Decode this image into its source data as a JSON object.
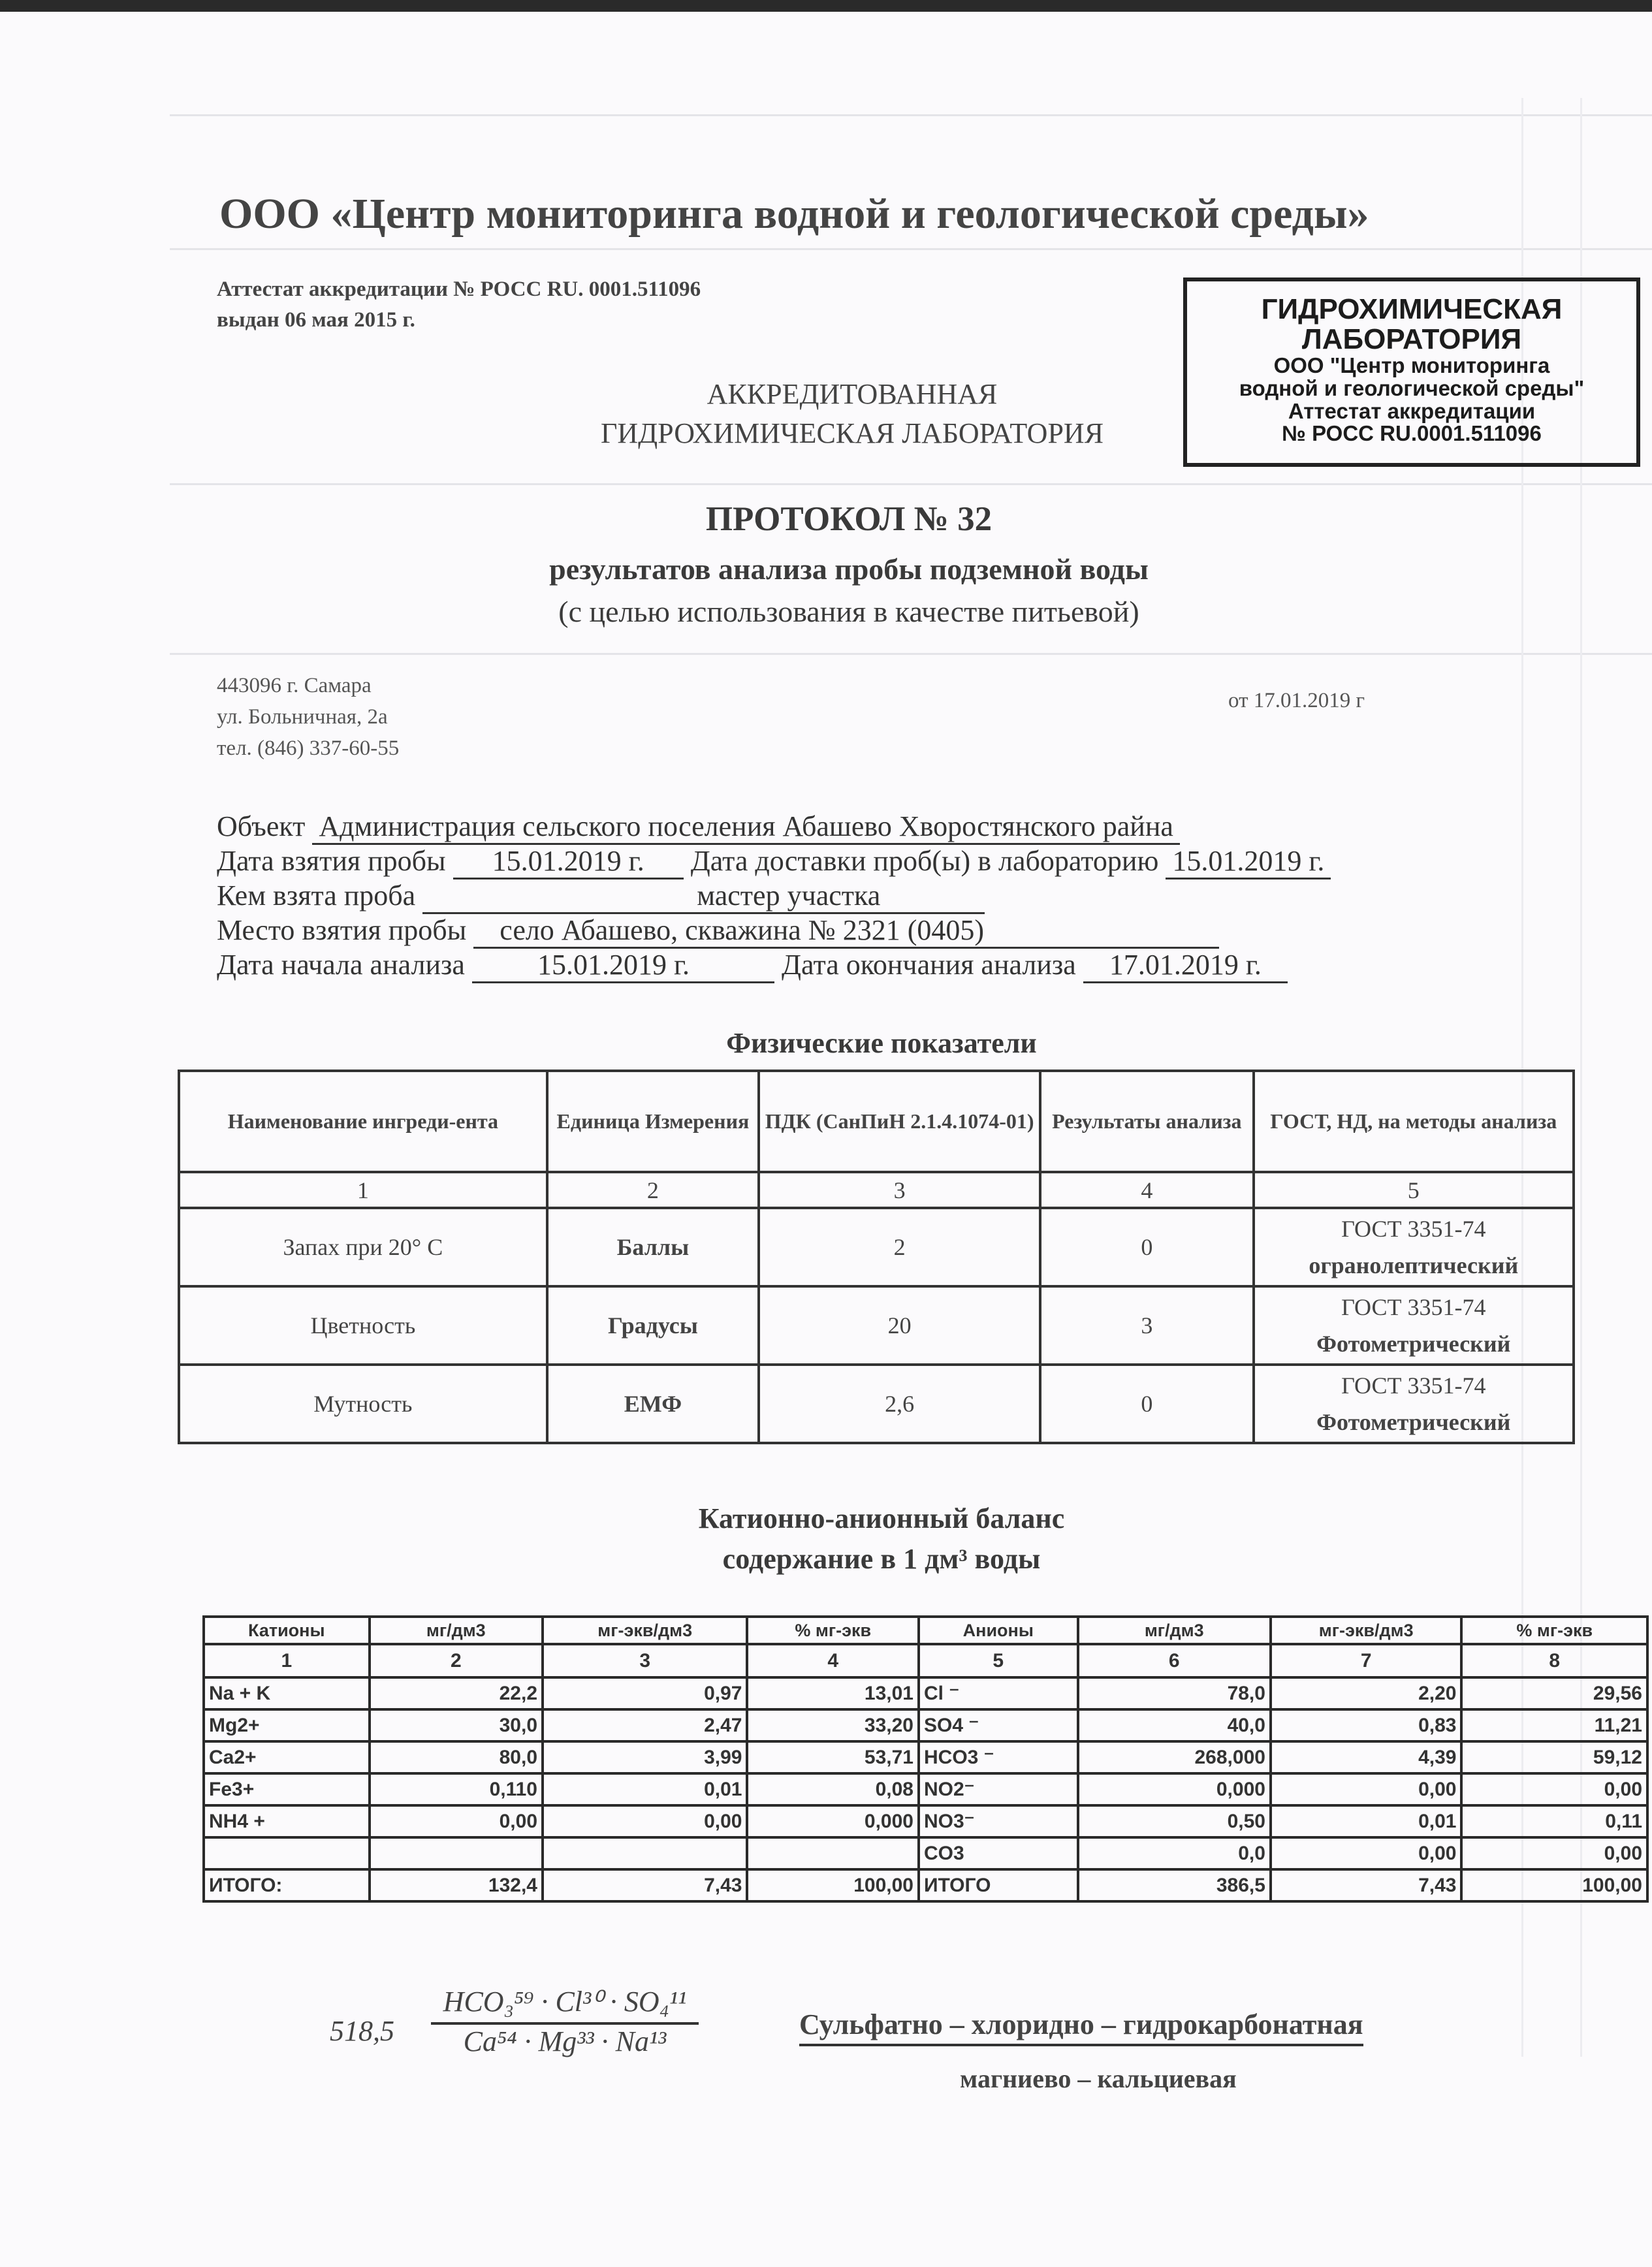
{
  "header": {
    "org_title": "ООО «Центр мониторинга водной и геологической среды»",
    "accreditation_line1": "Аттестат аккредитации № РОСС RU. 0001.511096",
    "accreditation_line2": "выдан 06 мая 2015 г.",
    "lab_line1": "АККРЕДИТОВАННАЯ",
    "lab_line2": "ГИДРОХИМИЧЕСКАЯ ЛАБОРАТОРИЯ"
  },
  "stamp": {
    "line1": "ГИДРОХИМИЧЕСКАЯ",
    "line2": "ЛАБОРАТОРИЯ",
    "line3": "ООО \"Центр мониторинга",
    "line4": "водной и геологической среды\"",
    "line5": "Аттестат аккредитации",
    "line6": "№ РОСС RU.0001.511096"
  },
  "protocol": {
    "title": "ПРОТОКОЛ  № 32",
    "subtitle1": "результатов анализа пробы подземной воды",
    "subtitle2": "(с целью использования в качестве питьевой)",
    "address1": "443096 г. Самара",
    "address2": "ул. Больничная, 2а",
    "phone": "тел. (846) 337-60-55",
    "date": "от 17.01.2019 г"
  },
  "sample": {
    "object_label": "Объект",
    "object_value": "Администрация сельского поселения Абашево Хворостянского райна",
    "taken_date_label": "Дата взятия пробы",
    "taken_date_value": "15.01.2019 г.",
    "delivery_label": "Дата доставки проб(ы) в лабораторию",
    "delivery_value": "15.01.2019 г.",
    "taken_by_label": "Кем взята проба",
    "taken_by_value": "мастер участка",
    "place_label": "Место взятия пробы",
    "place_value": "село Абашево, скважина № 2321 (0405)",
    "start_label": "Дата начала анализа",
    "start_value": "15.01.2019 г.",
    "end_label": "Дата окончания анализа",
    "end_value": "17.01.2019 г."
  },
  "physical": {
    "title": "Физические показатели",
    "headers": [
      "Наименование ингреди-ента",
      "Единица Измерения",
      "ПДК (СанПиН 2.1.4.1074-01)",
      "Результаты анализа",
      "ГОСТ, НД, на методы анализа"
    ],
    "col_numbers": [
      "1",
      "2",
      "3",
      "4",
      "5"
    ],
    "rows": [
      {
        "name": "Запах при 20° С",
        "unit": "Баллы",
        "pdk": "2",
        "result": "0",
        "method1": "ГОСТ 3351-74",
        "method2": "огранолептический"
      },
      {
        "name": "Цветность",
        "unit": "Градусы",
        "pdk": "20",
        "result": "3",
        "method1": "ГОСТ 3351-74",
        "method2": "Фотометрический"
      },
      {
        "name": "Мутность",
        "unit": "ЕМФ",
        "pdk": "2,6",
        "result": "0",
        "method1": "ГОСТ 3351-74",
        "method2": "Фотометрический"
      }
    ]
  },
  "balance": {
    "title": "Катионно-анионный баланс",
    "subtitle": "содержание в 1 дм³ воды",
    "headers": [
      "Катионы",
      "мг/дм3",
      "мг-экв/дм3",
      "% мг-экв",
      "Анионы",
      "мг/дм3",
      "мг-экв/дм3",
      "% мг-экв"
    ],
    "col_numbers": [
      "1",
      "2",
      "3",
      "4",
      "5",
      "6",
      "7",
      "8"
    ],
    "rows": [
      [
        "Na + K",
        "22,2",
        "0,97",
        "13,01",
        "Cl ⁻",
        "78,0",
        "2,20",
        "29,56"
      ],
      [
        "Mg2+",
        "30,0",
        "2,47",
        "33,20",
        "SO4 ⁻",
        "40,0",
        "0,83",
        "11,21"
      ],
      [
        "Ca2+",
        "80,0",
        "3,99",
        "53,71",
        "HCO3 ⁻",
        "268,000",
        "4,39",
        "59,12"
      ],
      [
        "Fe3+",
        "0,110",
        "0,01",
        "0,08",
        "NO2⁻",
        "0,000",
        "0,00",
        "0,00"
      ],
      [
        "NH4 +",
        "0,00",
        "0,00",
        "0,000",
        "NO3⁻",
        "0,50",
        "0,01",
        "0,11"
      ],
      [
        "",
        "",
        "",
        "",
        "CO3",
        "0,0",
        "0,00",
        "0,00"
      ],
      [
        "ИТОГО:",
        "132,4",
        "7,43",
        "100,00",
        "ИТОГО",
        "386,5",
        "7,43",
        "100,00"
      ]
    ]
  },
  "formula": {
    "mineralization": "518,5",
    "numerator": "HCO₃⁵⁹ · Cl³⁰ · SO₄¹¹",
    "denominator": "Ca⁵⁴ · Mg³³ · Na¹³",
    "class_line1": "Сульфатно – хлоридно – гидрокарбонатная",
    "class_line2": "магниево – кальциевая"
  }
}
